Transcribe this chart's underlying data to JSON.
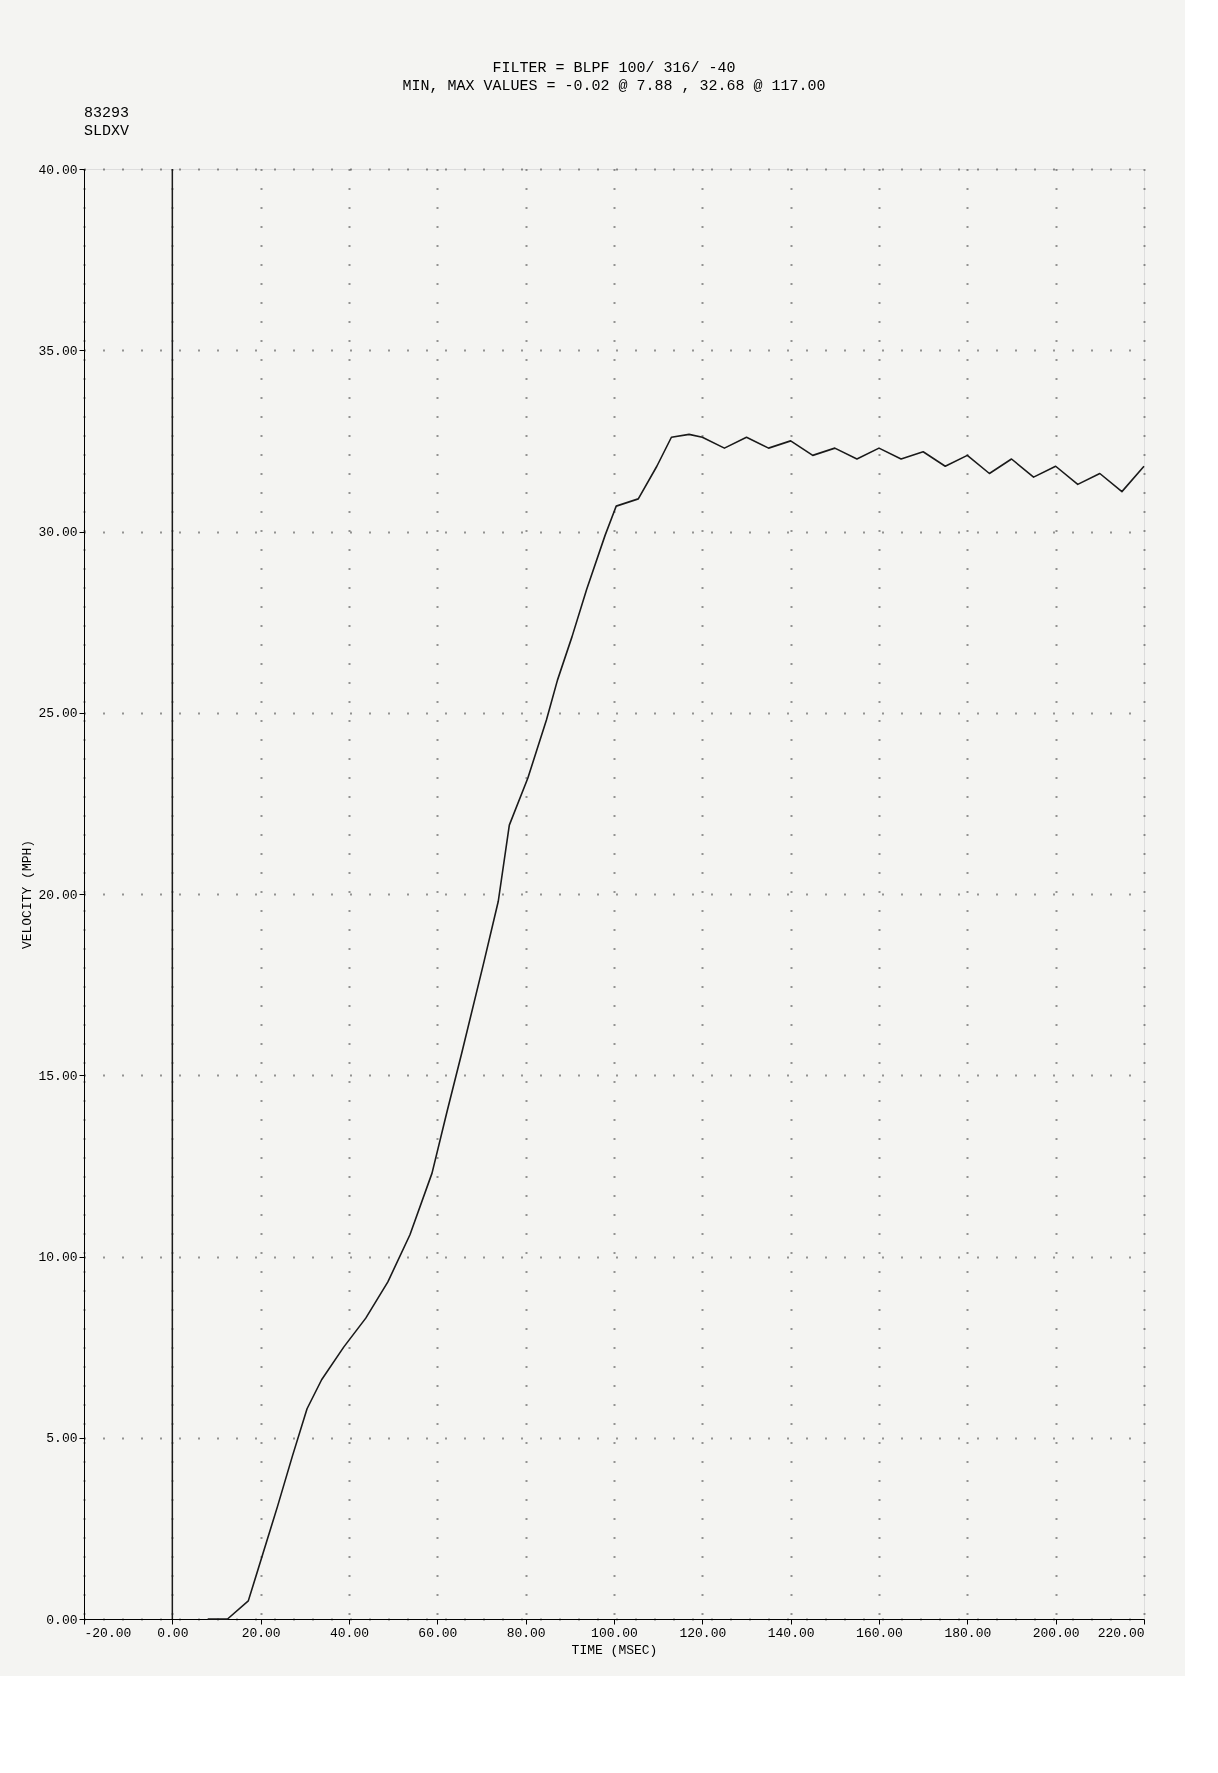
{
  "chart_data": {
    "type": "line",
    "title": "FILTER = BLPF   100/  316/ -40",
    "subtitle": "MIN, MAX VALUES =   -0.02 @   7.88 ,   32.68 @  117.00",
    "annotations": [
      "83293",
      "SLDXV"
    ],
    "xlabel": "TIME (MSEC)",
    "ylabel": "VELOCITY (MPH)",
    "x": [
      8,
      12.5,
      17.2,
      20.5,
      23.8,
      27.2,
      30.5,
      33.8,
      38.8,
      43.8,
      48.8,
      53.8,
      58.8,
      62.2,
      65.5,
      70.5,
      73.8,
      76.3,
      80.5,
      84.7,
      87.2,
      90.5,
      93.8,
      98,
      100.5,
      105.5,
      109.7,
      113,
      117,
      120,
      125,
      130,
      135,
      140,
      145,
      150,
      155,
      160,
      165,
      170,
      175,
      180,
      185,
      190,
      195,
      200,
      205,
      210,
      215,
      220
    ],
    "series": [
      {
        "color": "#1a1a1a",
        "values": [
          0,
          0,
          0.5,
          1.8,
          3.1,
          4.5,
          5.8,
          6.6,
          7.5,
          8.3,
          9.3,
          10.6,
          12.3,
          14.0,
          15.6,
          18.1,
          19.8,
          21.9,
          23.2,
          24.8,
          25.9,
          27.1,
          28.4,
          29.9,
          30.7,
          30.9,
          31.8,
          32.6,
          32.68,
          32.6,
          32.3,
          32.6,
          32.3,
          32.5,
          32.1,
          32.3,
          32.0,
          32.3,
          32.0,
          32.2,
          31.8,
          32.1,
          31.6,
          32.0,
          31.5,
          31.8,
          31.3,
          31.6,
          31.1,
          31.8
        ]
      }
    ],
    "xlim": [
      -20,
      220
    ],
    "xticks": [
      {
        "value": -20,
        "label": "-20.00"
      },
      {
        "value": 0,
        "label": "0.00"
      },
      {
        "value": 20,
        "label": "20.00"
      },
      {
        "value": 40,
        "label": "40.00"
      },
      {
        "value": 60,
        "label": "60.00"
      },
      {
        "value": 80,
        "label": "80.00"
      },
      {
        "value": 100,
        "label": "100.00"
      },
      {
        "value": 120,
        "label": "120.00"
      },
      {
        "value": 140,
        "label": "140.00"
      },
      {
        "value": 160,
        "label": "160.00"
      },
      {
        "value": 180,
        "label": "180.00"
      },
      {
        "value": 200,
        "label": "200.00"
      },
      {
        "value": 220,
        "label": "220.00"
      }
    ],
    "ylim": [
      0,
      40
    ],
    "yticks": [
      {
        "value": 0,
        "label": "0.00"
      },
      {
        "value": 5,
        "label": "5.00"
      },
      {
        "value": 10,
        "label": "10.00"
      },
      {
        "value": 15,
        "label": "15.00"
      },
      {
        "value": 20,
        "label": "20.00"
      },
      {
        "value": 25,
        "label": "25.00"
      },
      {
        "value": 30,
        "label": "30.00"
      },
      {
        "value": 35,
        "label": "35.00"
      },
      {
        "value": 40,
        "label": "40.00"
      }
    ],
    "ref_lines": [
      {
        "axis": "x",
        "value": 0,
        "color": "#1a1a1a",
        "line_style": "solid"
      }
    ],
    "grid": true,
    "line_style": "solid",
    "marker": "none"
  }
}
